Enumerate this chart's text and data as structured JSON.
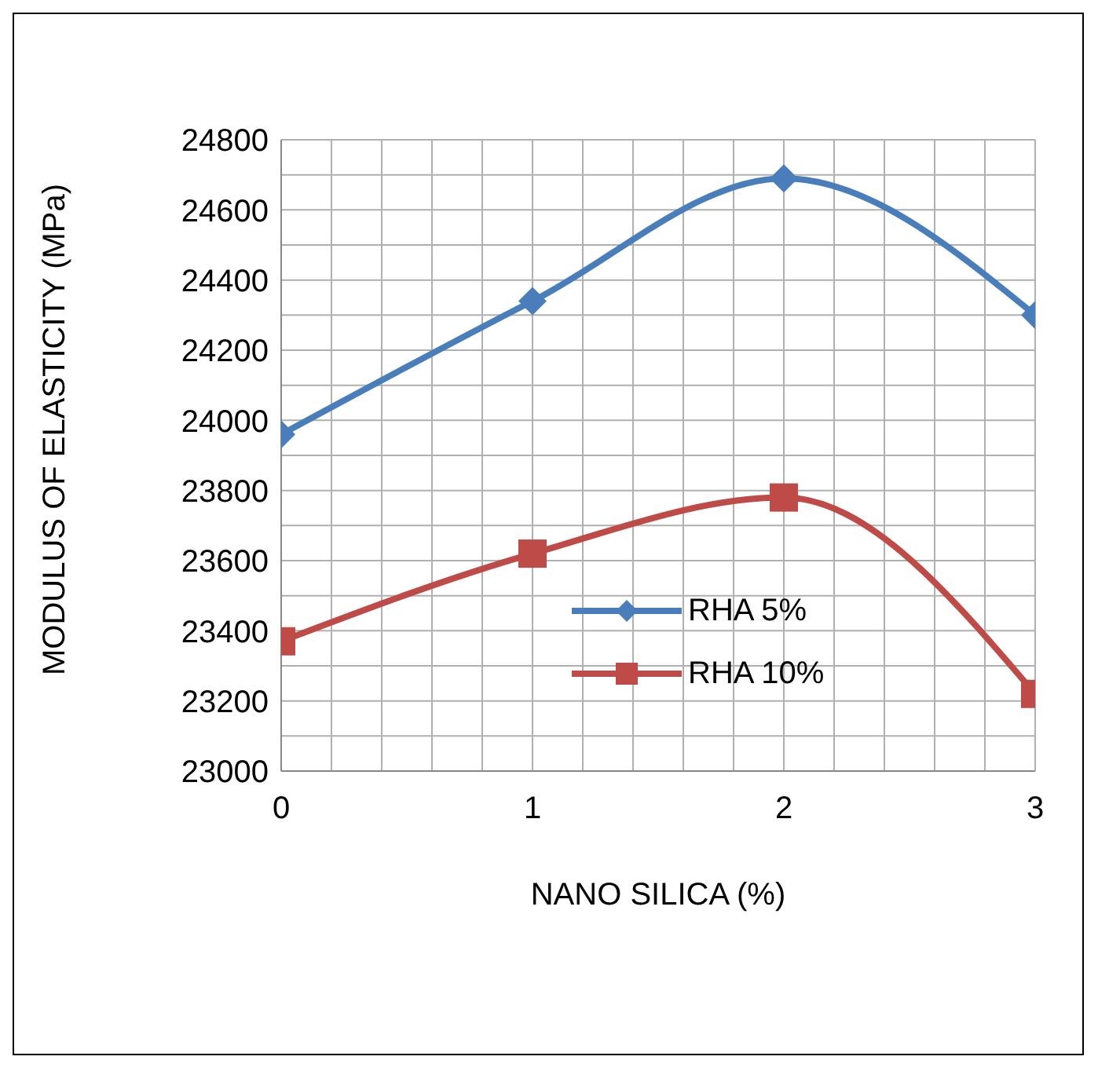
{
  "chart_data": {
    "type": "line",
    "xlabel": "NANO SILICA (%)",
    "ylabel": "MODULUS OF ELASTICITY (MPa)",
    "x": [
      0,
      1,
      2,
      3
    ],
    "series": [
      {
        "name": "RHA 5%",
        "color": "#4a7ebb",
        "marker": "diamond",
        "values": [
          23960,
          24340,
          24690,
          24300
        ]
      },
      {
        "name": "RHA 10%",
        "color": "#be4b48",
        "marker": "square",
        "values": [
          23370,
          23620,
          23780,
          23220
        ]
      }
    ],
    "xlim": [
      0,
      3
    ],
    "xticks": [
      0,
      {
        "value": 0.2,
        "label": null
      },
      {
        "value": 0.4,
        "label": null
      },
      {
        "value": 0.6,
        "label": null
      },
      {
        "value": 0.8,
        "label": null
      },
      1,
      {
        "value": 1.2,
        "label": null
      },
      {
        "value": 1.4,
        "label": null
      },
      {
        "value": 1.6,
        "label": null
      },
      {
        "value": 1.8,
        "label": null
      },
      2,
      {
        "value": 2.2,
        "label": null
      },
      {
        "value": 2.4,
        "label": null
      },
      {
        "value": 2.6,
        "label": null
      },
      {
        "value": 2.8,
        "label": null
      },
      3
    ],
    "ylim": [
      23000,
      24800
    ],
    "yticks": [
      23000,
      {
        "value": 23100,
        "label": null
      },
      23200,
      {
        "value": 23300,
        "label": null
      },
      23400,
      {
        "value": 23500,
        "label": null
      },
      23600,
      {
        "value": 23700,
        "label": null
      },
      23800,
      {
        "value": 23900,
        "label": null
      },
      24000,
      {
        "value": 24100,
        "label": null
      },
      24200,
      {
        "value": 24300,
        "label": null
      },
      24400,
      {
        "value": 24500,
        "label": null
      },
      24600,
      {
        "value": 24700,
        "label": null
      },
      24800
    ],
    "grid": true,
    "legend": "center"
  }
}
